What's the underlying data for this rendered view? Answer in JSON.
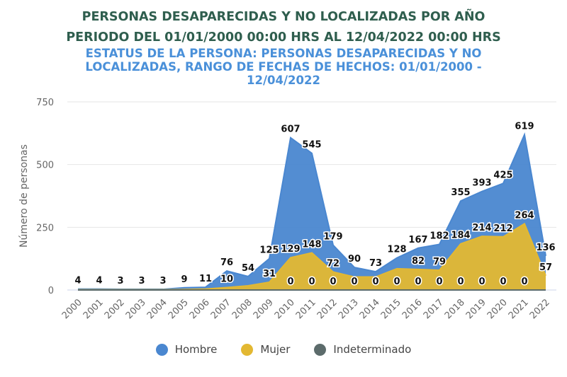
{
  "title": "PERSONAS DESAPARECIDAS Y NO LOCALIZADAS POR AÑO",
  "subtitle1": "PERIODO DEL 01/01/2000 00:00 HRS AL 12/04/2022 00:00 HRS",
  "subtitle2": "ESTATUS DE LA PERSONA: PERSONAS DESAPARECIDAS Y NO LOCALIZADAS, RANGO DE FECHAS DE HECHOS: 01/01/2000 - 12/04/2022",
  "chart_data": {
    "type": "area",
    "ylabel": "Número de personas",
    "ylim": [
      0,
      750
    ],
    "yticks": [
      0,
      250,
      500,
      750
    ],
    "grid": true,
    "legend_position": "bottom",
    "categories": [
      "2000",
      "2001",
      "2002",
      "2003",
      "2004",
      "2005",
      "2006",
      "2007",
      "2008",
      "2009",
      "2010",
      "2011",
      "2012",
      "2013",
      "2014",
      "2015",
      "2016",
      "2017",
      "2018",
      "2019",
      "2020",
      "2021",
      "2022"
    ],
    "series": [
      {
        "name": "Hombre",
        "color": "#4a87d0",
        "values": [
          4,
          4,
          3,
          3,
          3,
          9,
          11,
          76,
          54,
          125,
          607,
          545,
          179,
          90,
          73,
          128,
          167,
          182,
          355,
          393,
          425,
          619,
          136
        ],
        "labels": [
          true,
          true,
          true,
          true,
          true,
          true,
          true,
          true,
          true,
          true,
          true,
          true,
          true,
          true,
          true,
          true,
          true,
          true,
          true,
          true,
          true,
          true,
          true
        ]
      },
      {
        "name": "Mujer",
        "color": "#e3b832",
        "values": [
          1,
          1,
          1,
          1,
          1,
          2,
          4,
          10,
          17,
          31,
          129,
          148,
          72,
          52,
          52,
          85,
          82,
          79,
          184,
          214,
          212,
          264,
          57
        ],
        "labels": [
          false,
          false,
          false,
          false,
          false,
          false,
          false,
          true,
          false,
          true,
          true,
          true,
          true,
          false,
          false,
          false,
          true,
          true,
          true,
          true,
          true,
          true,
          true
        ]
      },
      {
        "name": "Indeterminado",
        "color": "#5c6b6b",
        "values": [
          0,
          0,
          0,
          0,
          0,
          0,
          0,
          0,
          0,
          0,
          0,
          0,
          0,
          0,
          0,
          0,
          0,
          0,
          0,
          0,
          0,
          0,
          0
        ],
        "labels": [
          false,
          false,
          false,
          false,
          false,
          false,
          false,
          false,
          false,
          false,
          true,
          true,
          true,
          true,
          true,
          true,
          true,
          true,
          true,
          true,
          true,
          true,
          false
        ]
      }
    ]
  }
}
